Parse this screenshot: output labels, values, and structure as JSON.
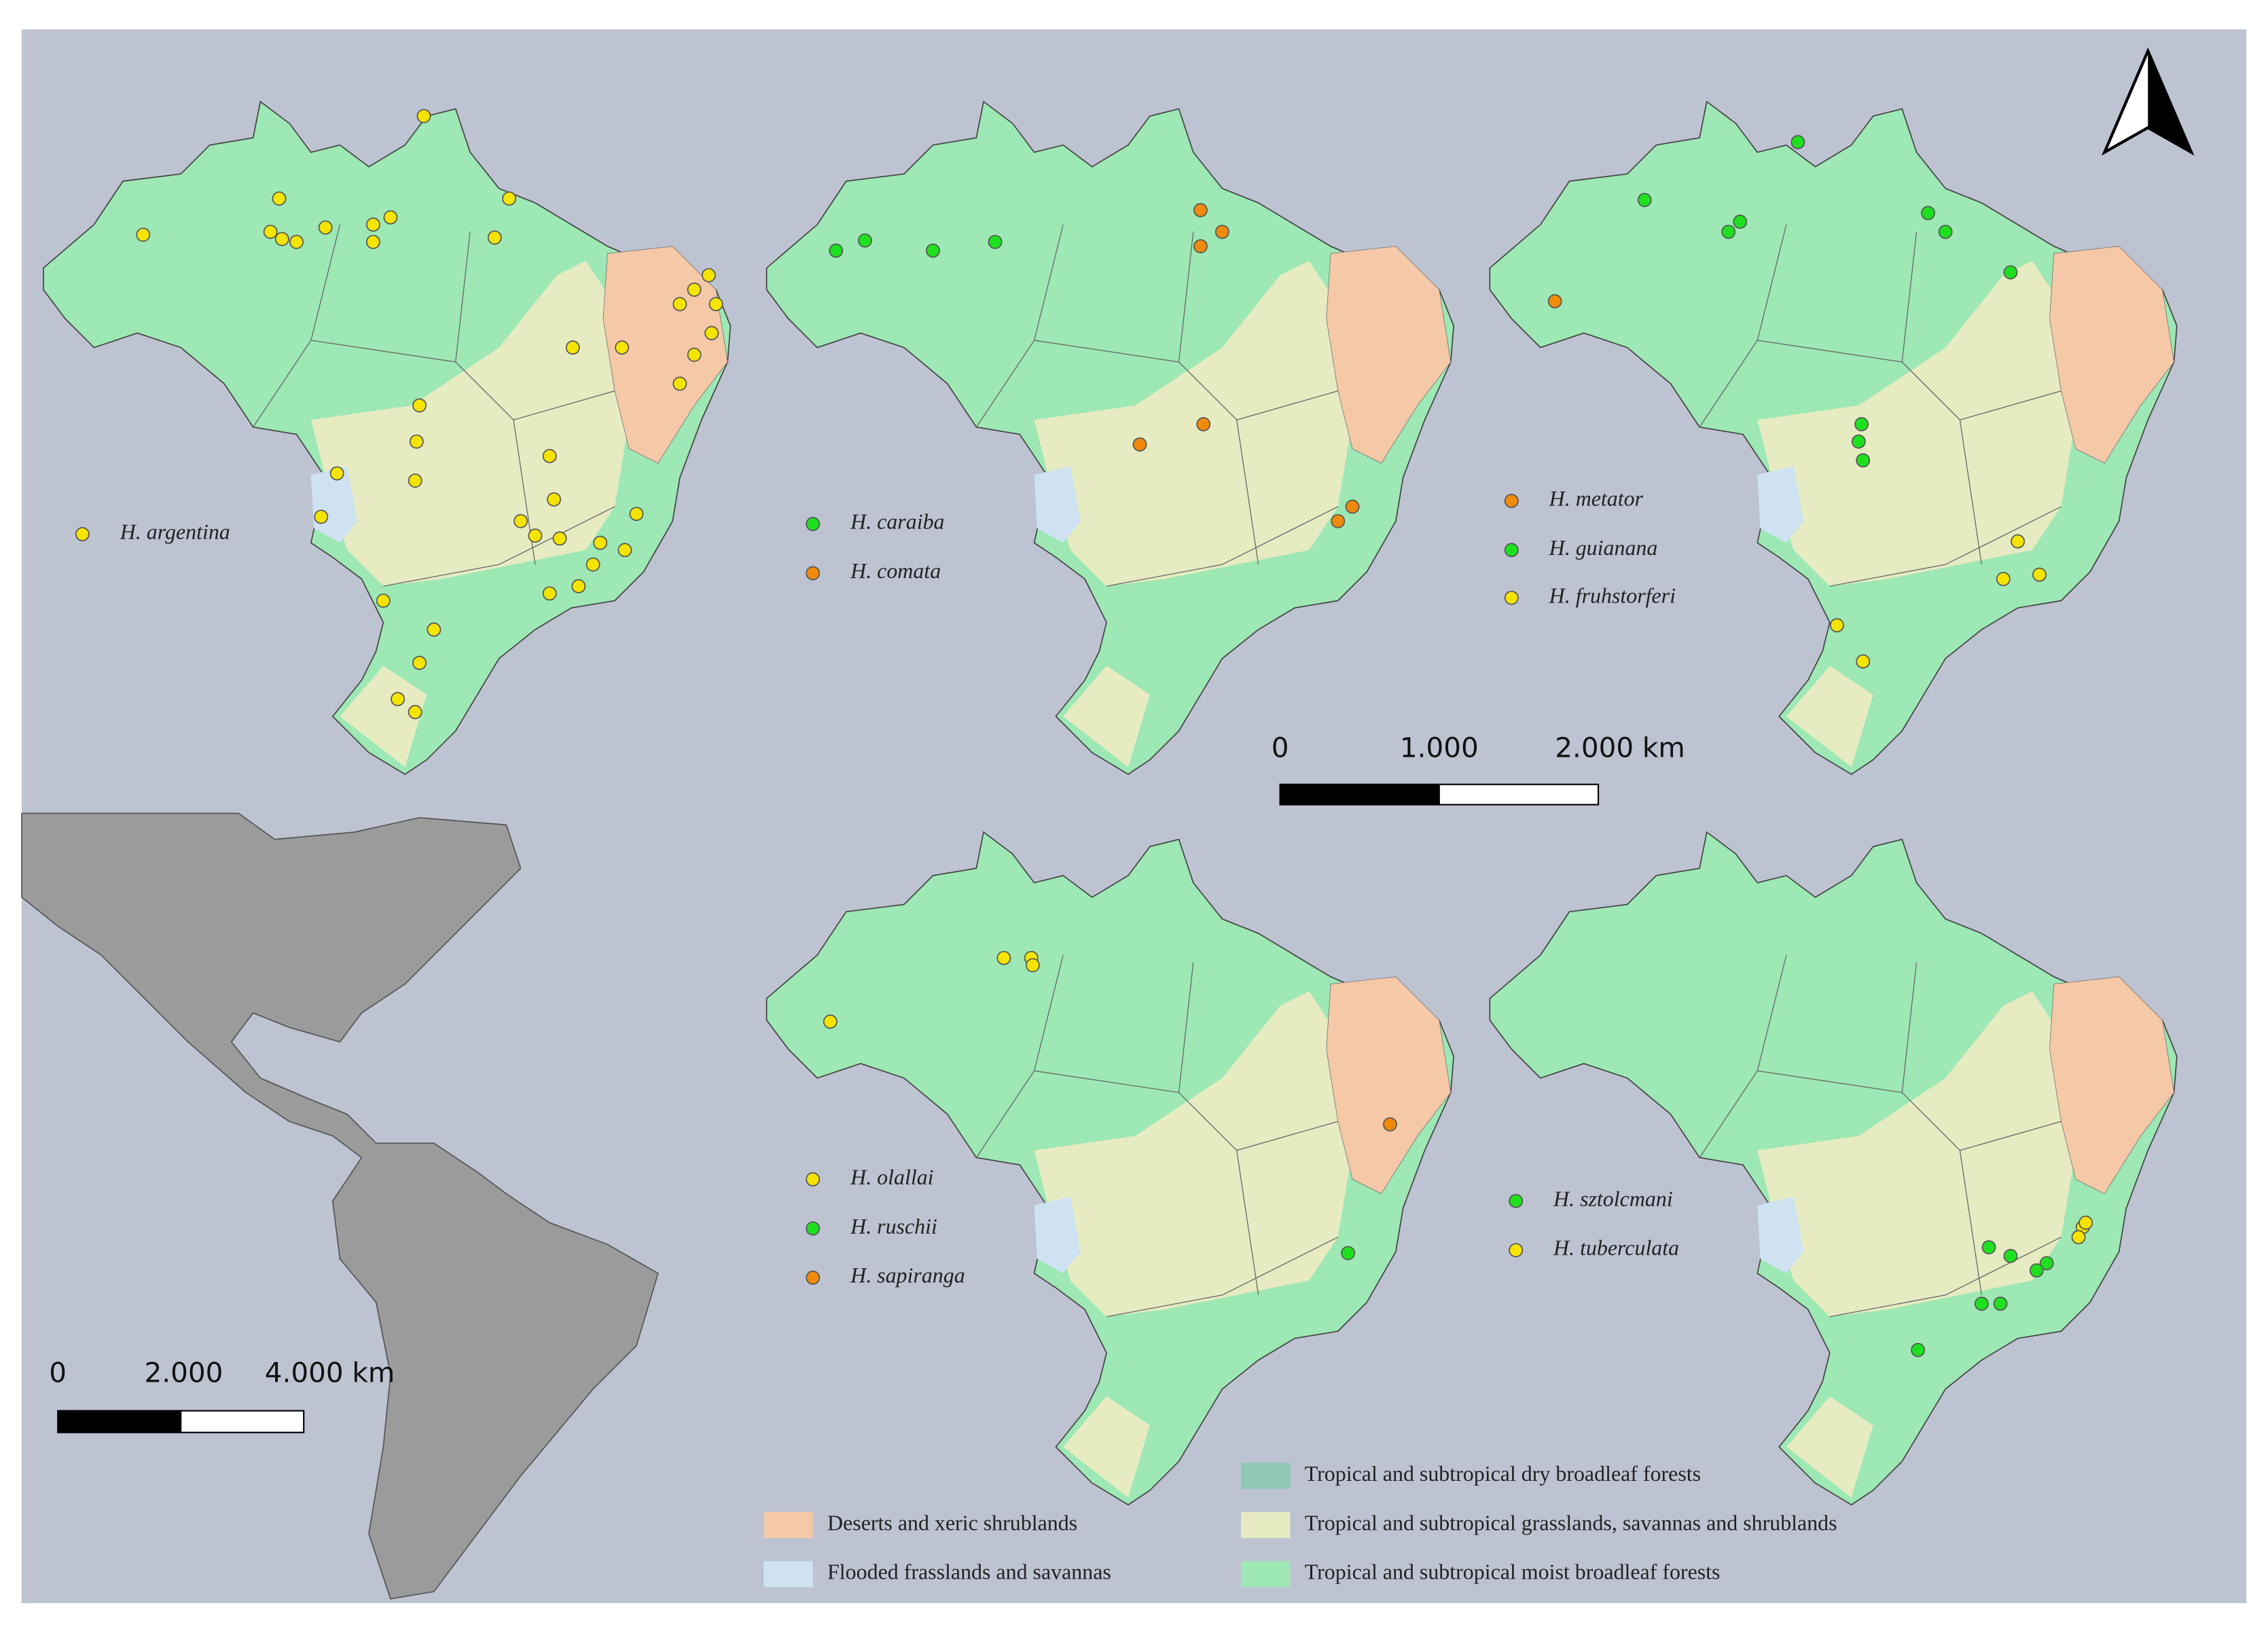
{
  "maps": [
    {
      "legend": [
        "H. argentina"
      ]
    },
    {
      "legend": [
        "H. caraiba",
        "H. comata"
      ]
    },
    {
      "legend": [
        "H. metator",
        "H. guianana",
        "H. fruhstorferi"
      ]
    },
    {
      "legend": [
        "H. olallai",
        "H. ruschii",
        "H. sapiranga"
      ]
    },
    {
      "legend": [
        "H. sztolcmani",
        "H. tuberculata"
      ]
    }
  ],
  "scale_bars": [
    {
      "labels": [
        "0",
        "1.000",
        "2.000 km"
      ]
    },
    {
      "labels": [
        "0",
        "2.000",
        "4.000 km"
      ]
    }
  ],
  "biome_legend": [
    "Tropical and subtropical dry broadleaf forests",
    "Deserts and xeric shrublands",
    "Tropical and subtropical grasslands, savannas and shrublands",
    "Flooded frasslands and savannas",
    "Tropical and subtropical moist broadleaf forests"
  ]
}
